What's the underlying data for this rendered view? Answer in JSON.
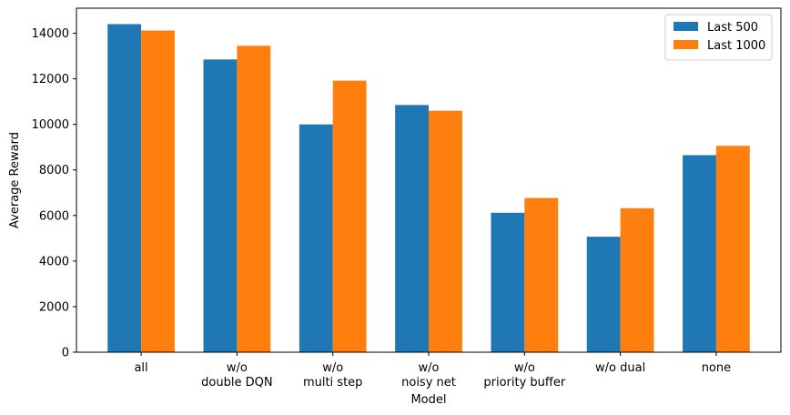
{
  "chart_data": {
    "type": "bar",
    "title": "",
    "xlabel": "Model",
    "ylabel": "Average Reward",
    "categories": [
      [
        "all"
      ],
      [
        "w/o",
        "double DQN"
      ],
      [
        "w/o",
        "multi step"
      ],
      [
        "w/o",
        "noisy net"
      ],
      [
        "w/o",
        "priority buffer"
      ],
      [
        "w/o dual"
      ],
      [
        "none"
      ]
    ],
    "series": [
      {
        "name": "Last 500",
        "color": "#1f77b4",
        "values": [
          14400,
          12850,
          10000,
          10850,
          6120,
          5070,
          8650
        ]
      },
      {
        "name": "Last 1000",
        "color": "#ff7f0e",
        "values": [
          14120,
          13450,
          11920,
          10600,
          6770,
          6320,
          9060
        ]
      }
    ],
    "ylim": [
      0,
      15100
    ],
    "yticks": [
      0,
      2000,
      4000,
      6000,
      8000,
      10000,
      12000,
      14000
    ],
    "grid": false,
    "legend_position": "top-right"
  }
}
